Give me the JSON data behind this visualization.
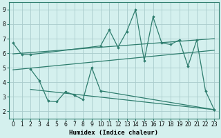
{
  "xlabel": "Humidex (Indice chaleur)",
  "background_color": "#d4f0ee",
  "grid_color": "#aacccc",
  "line_color": "#2e7d6e",
  "xlim": [
    -0.5,
    23.5
  ],
  "ylim": [
    1.5,
    9.5
  ],
  "xticks": [
    0,
    1,
    2,
    3,
    4,
    5,
    6,
    7,
    8,
    9,
    10,
    11,
    12,
    13,
    14,
    15,
    16,
    17,
    18,
    19,
    20,
    21,
    22,
    23
  ],
  "yticks": [
    2,
    3,
    4,
    5,
    6,
    7,
    8,
    9
  ],
  "line1_x": [
    0,
    1,
    2,
    10,
    11,
    12,
    13,
    14,
    15,
    16,
    17,
    18,
    19,
    20,
    21,
    22,
    23
  ],
  "line1_y": [
    6.7,
    5.9,
    5.9,
    6.5,
    7.6,
    6.4,
    7.5,
    9.0,
    5.5,
    8.5,
    6.7,
    6.6,
    6.9,
    5.1,
    6.9,
    3.4,
    2.1
  ],
  "line2_x": [
    0,
    23
  ],
  "line2_y": [
    5.95,
    7.0
  ],
  "line3_x": [
    0,
    23
  ],
  "line3_y": [
    4.85,
    6.2
  ],
  "line4_x": [
    2,
    3,
    4,
    5,
    6,
    7,
    8,
    9,
    10,
    23
  ],
  "line4_y": [
    4.9,
    4.1,
    2.7,
    2.65,
    3.35,
    3.1,
    2.8,
    5.0,
    3.4,
    2.1
  ],
  "line5_x": [
    2,
    23
  ],
  "line5_y": [
    3.5,
    2.1
  ]
}
